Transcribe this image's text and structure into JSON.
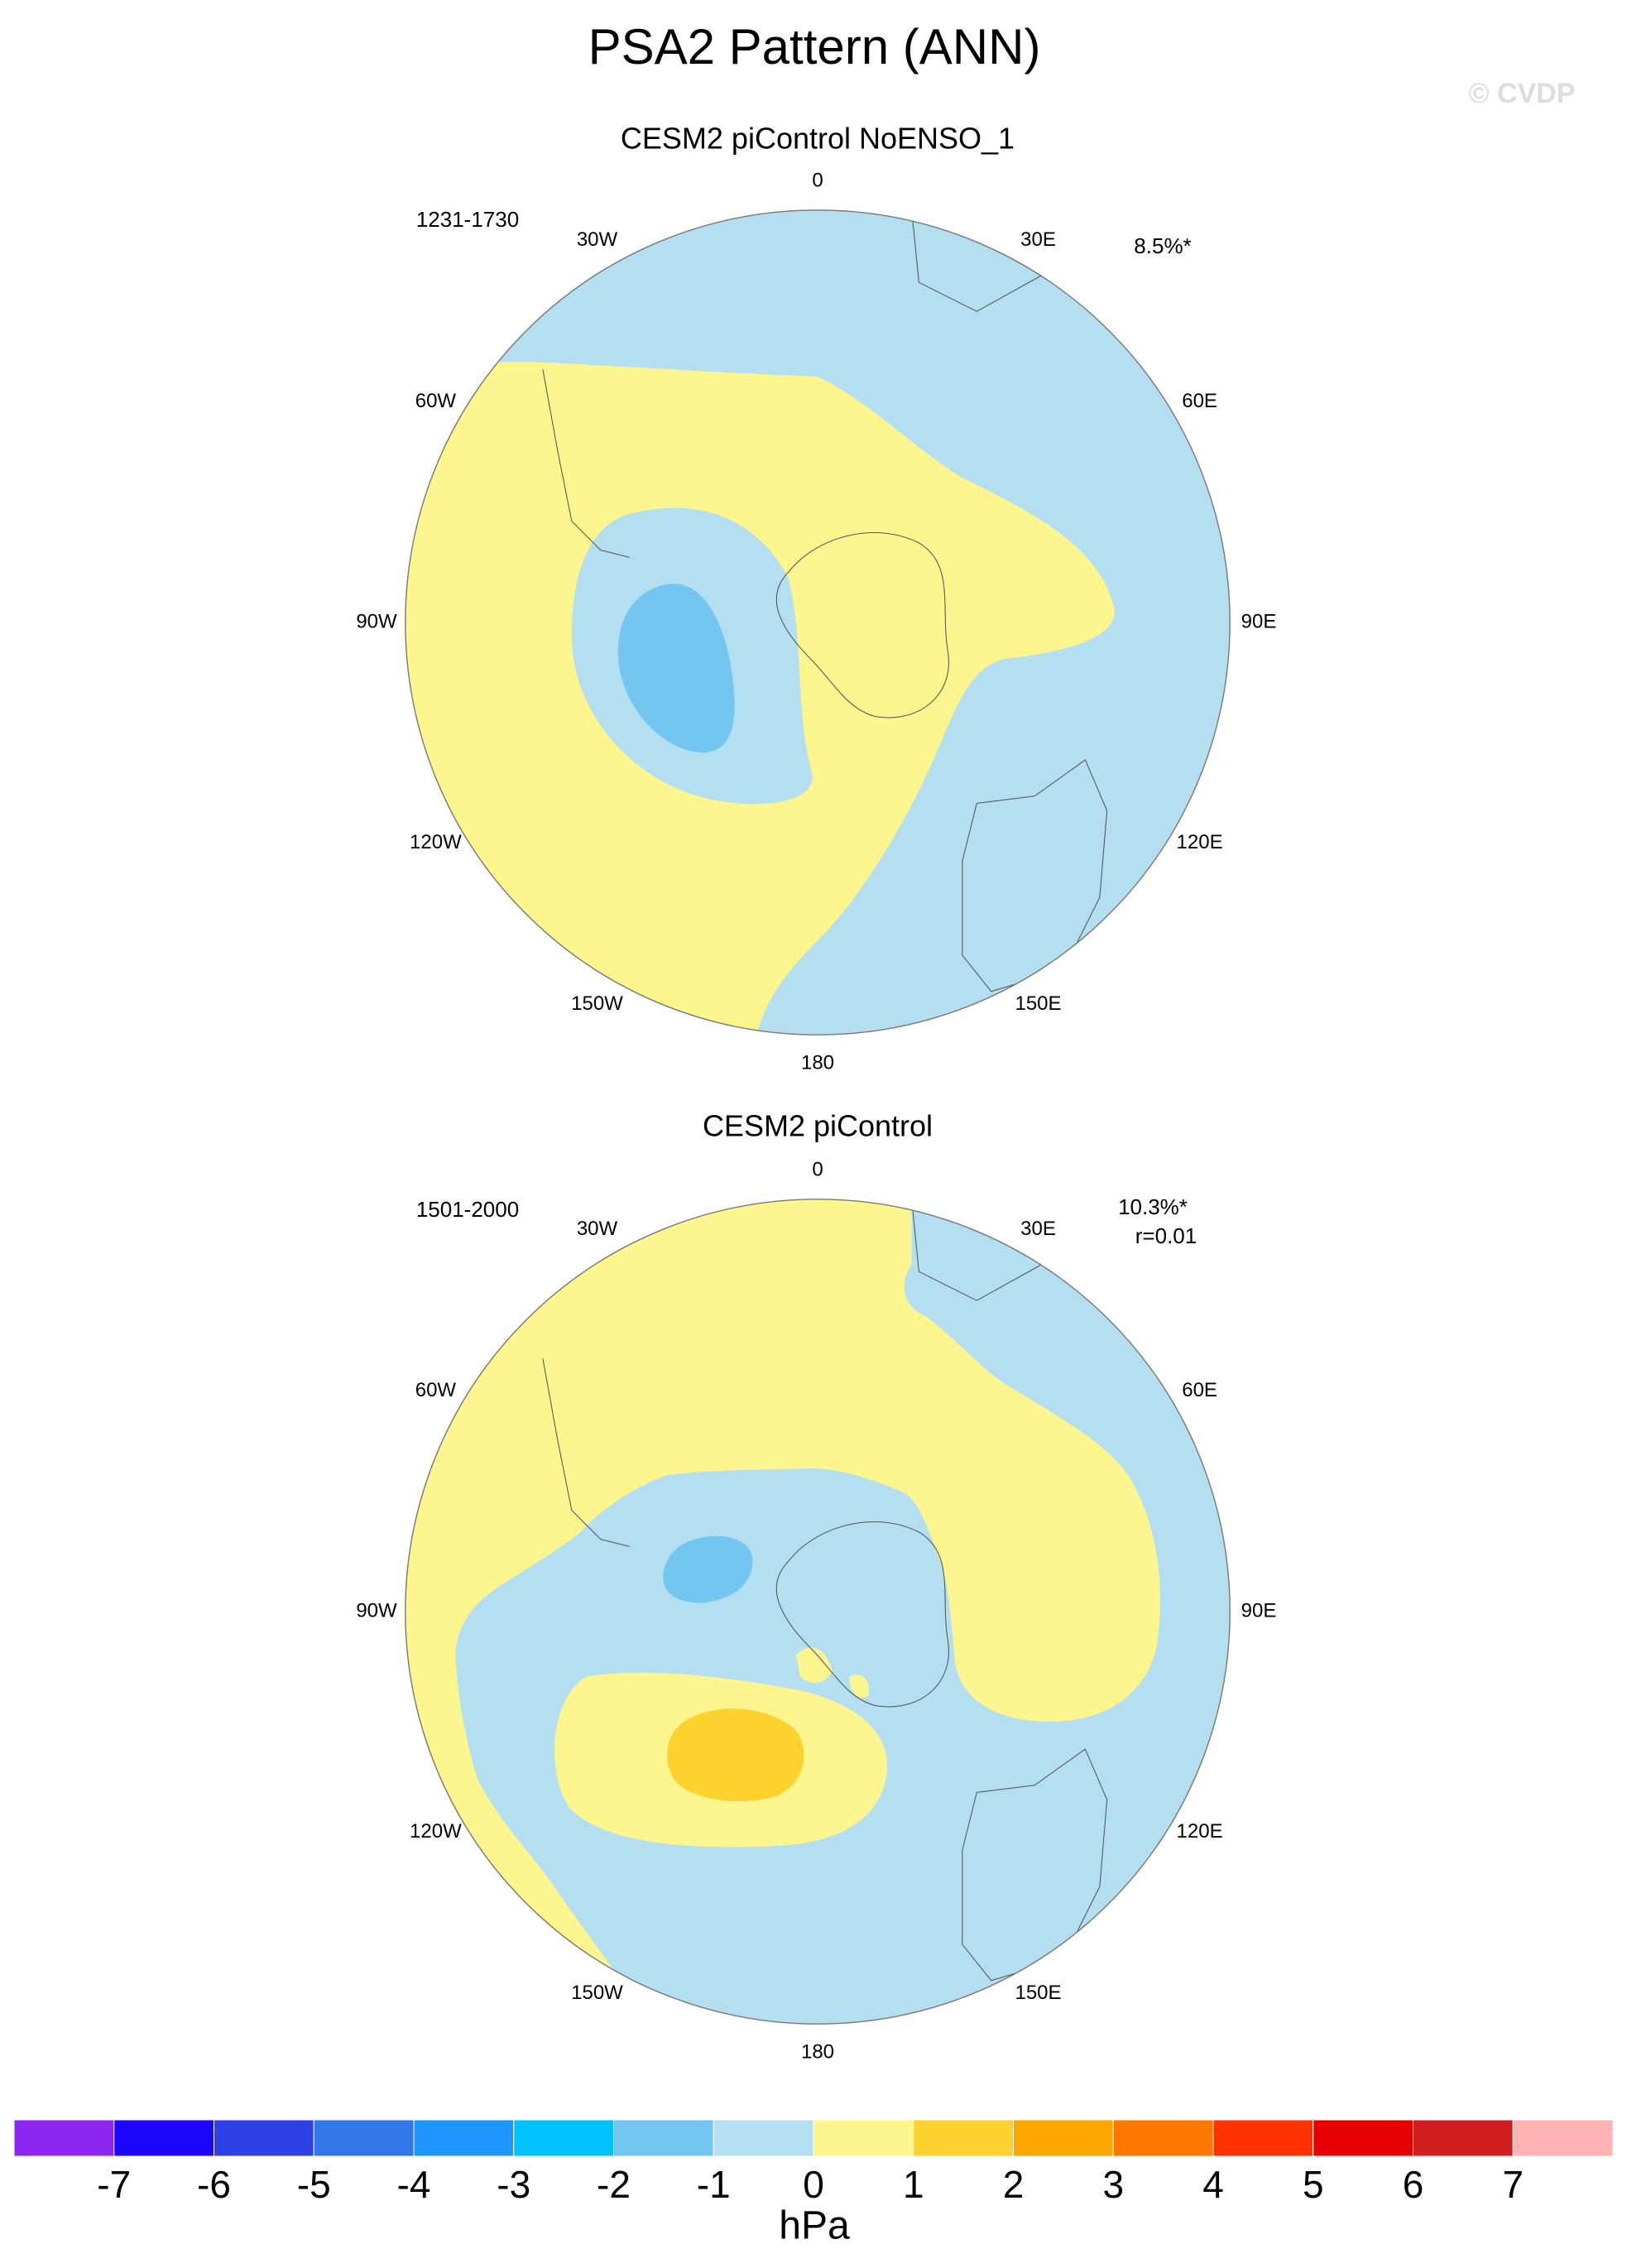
{
  "title": "PSA2 Pattern (ANN)",
  "watermark": "© CVDP",
  "panels": [
    {
      "subtitle": "CESM2 piControl NoENSO_1",
      "period": "1231-1730",
      "variance": "8.5%*"
    },
    {
      "subtitle": "CESM2 piControl",
      "period": "1501-2000",
      "variance": "10.3%*",
      "correlation": "r=0.01"
    }
  ],
  "longitude_labels": [
    "0",
    "30E",
    "60E",
    "90E",
    "120E",
    "150E",
    "180",
    "150W",
    "120W",
    "90W",
    "60W",
    "30W"
  ],
  "colorbar": {
    "ticks": [
      -7,
      -6,
      -5,
      -4,
      -3,
      -2,
      -1,
      0,
      1,
      2,
      3,
      4,
      5,
      6,
      7
    ],
    "colors": [
      "#8b27f0",
      "#1e05fc",
      "#2d41e6",
      "#3277ea",
      "#1e96ff",
      "#00c1ff",
      "#72c6f0",
      "#b4dff1",
      "#fdf68f",
      "#fed22e",
      "#fea600",
      "#fe7800",
      "#ff3200",
      "#e60000",
      "#d01e1e",
      "#feb3b3"
    ],
    "unit": "hPa"
  }
}
